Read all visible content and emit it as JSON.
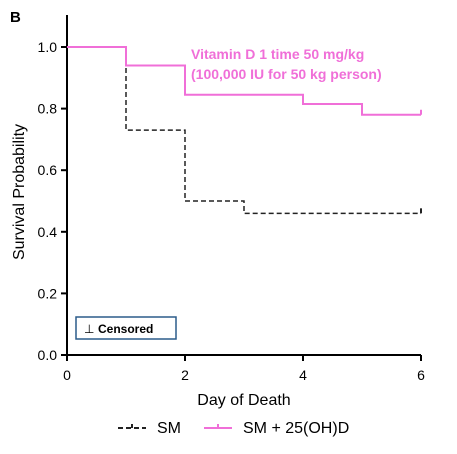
{
  "chart_data": {
    "type": "line",
    "panel_label": "B",
    "xlabel": "Day of Death",
    "ylabel": "Survival Probability",
    "xlim": [
      0,
      6
    ],
    "ylim": [
      0,
      1.0
    ],
    "x_ticks": [
      "0",
      "2",
      "4",
      "6"
    ],
    "y_ticks": [
      "0.0",
      "0.2",
      "0.4",
      "0.6",
      "0.8",
      "1.0"
    ],
    "annotation": [
      "Vitamin D 1 time 50 mg/kg",
      "(100,000 IU for 50 kg person)"
    ],
    "annotation_color": "#f06fd8",
    "censored_label": "Censored",
    "censored_symbol": "⊥",
    "legend_position": "bottom",
    "grid": false,
    "series": [
      {
        "name": "SM",
        "color": "#222222",
        "style": "dashed",
        "steps": [
          [
            0,
            1.0
          ],
          [
            1,
            0.73
          ],
          [
            2,
            0.5
          ],
          [
            3,
            0.46
          ],
          [
            6,
            0.46
          ]
        ],
        "censored": [
          [
            6,
            0.46
          ]
        ]
      },
      {
        "name": "SM + 25(OH)D",
        "color": "#f06fd8",
        "style": "solid",
        "steps": [
          [
            0,
            1.0
          ],
          [
            1,
            0.94
          ],
          [
            2,
            0.845
          ],
          [
            4,
            0.815
          ],
          [
            5,
            0.78
          ],
          [
            6,
            0.78
          ]
        ],
        "censored": [
          [
            6,
            0.78
          ]
        ]
      }
    ]
  }
}
